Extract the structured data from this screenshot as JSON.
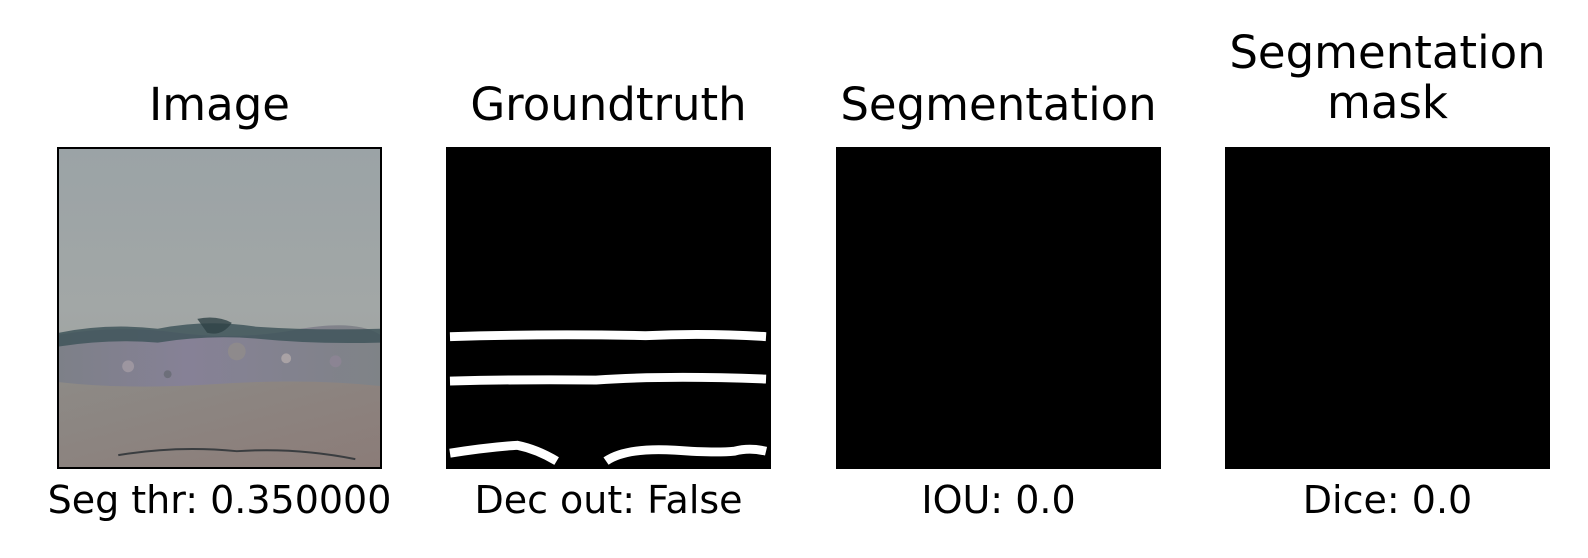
{
  "panels": [
    {
      "title": "Image",
      "caption": "Seg thr: 0.350000"
    },
    {
      "title": "Groundtruth",
      "caption": "Dec out: False"
    },
    {
      "title": "Segmentation",
      "caption": "IOU: 0.0"
    },
    {
      "title_line1": "Segmentation",
      "title_line2": "mask",
      "caption": "Dice: 0.0"
    }
  ],
  "colors": {
    "background": "#ffffff",
    "mask_background": "#000000",
    "mask_foreground": "#ffffff",
    "surface_light": "#9aa1a3",
    "surface_dark": "#8a8680",
    "crack": "#33474a"
  }
}
